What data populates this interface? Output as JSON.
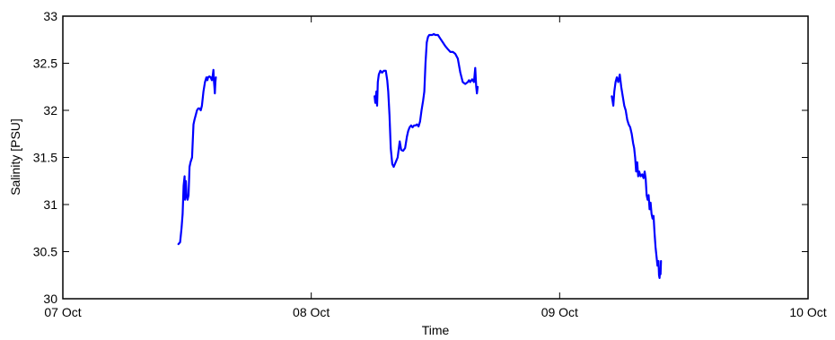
{
  "chart_data": {
    "type": "line",
    "title": "",
    "xlabel": "Time",
    "ylabel": "Salinity [PSU]",
    "x_unit": "days since 07 Oct",
    "xlim": [
      0,
      3
    ],
    "ylim": [
      30,
      33
    ],
    "grid": false,
    "x_ticks": [
      {
        "value": 0,
        "label": "07 Oct"
      },
      {
        "value": 1,
        "label": "08 Oct"
      },
      {
        "value": 2,
        "label": "09 Oct"
      },
      {
        "value": 3,
        "label": "10 Oct"
      }
    ],
    "y_ticks": [
      {
        "value": 30,
        "label": "30"
      },
      {
        "value": 30.5,
        "label": "30.5"
      },
      {
        "value": 31,
        "label": "31"
      },
      {
        "value": 31.5,
        "label": "31.5"
      },
      {
        "value": 32,
        "label": "32"
      },
      {
        "value": 32.5,
        "label": "32.5"
      },
      {
        "value": 33,
        "label": "33"
      }
    ],
    "color": "#0000ff",
    "segments": [
      {
        "x": [
          0.465,
          0.472,
          0.478,
          0.482,
          0.486,
          0.49,
          0.492,
          0.495,
          0.498,
          0.502,
          0.506,
          0.51,
          0.514,
          0.52,
          0.526,
          0.53,
          0.535,
          0.54,
          0.545,
          0.55,
          0.555,
          0.56,
          0.566,
          0.572,
          0.578,
          0.582,
          0.585,
          0.59,
          0.595,
          0.6,
          0.604,
          0.606,
          0.608,
          0.61,
          0.612,
          0.614,
          0.616
        ],
        "y": [
          30.58,
          30.6,
          30.75,
          30.9,
          31.2,
          31.3,
          31.05,
          31.25,
          31.1,
          31.05,
          31.1,
          31.4,
          31.45,
          31.5,
          31.85,
          31.9,
          31.95,
          32.0,
          32.02,
          32.02,
          32.0,
          32.05,
          32.2,
          32.3,
          32.35,
          32.32,
          32.35,
          32.36,
          32.35,
          32.32,
          32.38,
          32.43,
          32.32,
          32.25,
          32.18,
          32.3,
          32.35
        ]
      },
      {
        "x": [
          1.255,
          1.258,
          1.262,
          1.265,
          1.268,
          1.272,
          1.278,
          1.285,
          1.292,
          1.3,
          1.306,
          1.31,
          1.315,
          1.32,
          1.326,
          1.332,
          1.34,
          1.348,
          1.356,
          1.362,
          1.37,
          1.378,
          1.385,
          1.39,
          1.396,
          1.402,
          1.408,
          1.414,
          1.42,
          1.426,
          1.432,
          1.438,
          1.444,
          1.45,
          1.455,
          1.46,
          1.465,
          1.47,
          1.475,
          1.48,
          1.487,
          1.493,
          1.5,
          1.51,
          1.52,
          1.53,
          1.54,
          1.55,
          1.56,
          1.57,
          1.58,
          1.59,
          1.6,
          1.61,
          1.62,
          1.63,
          1.635,
          1.64,
          1.648,
          1.655,
          1.66,
          1.664,
          1.667,
          1.67
        ],
        "y": [
          32.15,
          32.08,
          32.2,
          32.05,
          32.3,
          32.38,
          32.42,
          32.4,
          32.42,
          32.42,
          32.32,
          32.2,
          31.95,
          31.6,
          31.43,
          31.4,
          31.45,
          31.5,
          31.67,
          31.58,
          31.57,
          31.6,
          31.72,
          31.78,
          31.82,
          31.84,
          31.82,
          31.84,
          31.84,
          31.85,
          31.83,
          31.88,
          32.0,
          32.1,
          32.2,
          32.5,
          32.72,
          32.78,
          32.8,
          32.8,
          32.8,
          32.81,
          32.8,
          32.8,
          32.76,
          32.72,
          32.68,
          32.65,
          32.62,
          32.62,
          32.6,
          32.55,
          32.4,
          32.3,
          32.28,
          32.3,
          32.32,
          32.3,
          32.33,
          32.3,
          32.45,
          32.25,
          32.18,
          32.25
        ]
      },
      {
        "x": [
          2.21,
          2.213,
          2.216,
          2.22,
          2.225,
          2.23,
          2.236,
          2.242,
          2.248,
          2.254,
          2.26,
          2.266,
          2.272,
          2.278,
          2.284,
          2.29,
          2.296,
          2.3,
          2.304,
          2.308,
          2.312,
          2.316,
          2.32,
          2.326,
          2.332,
          2.338,
          2.342,
          2.346,
          2.35,
          2.354,
          2.358,
          2.362,
          2.366,
          2.37,
          2.374,
          2.378,
          2.382,
          2.386,
          2.39,
          2.394,
          2.398,
          2.4,
          2.402,
          2.404,
          2.406,
          2.408
        ],
        "y": [
          32.15,
          32.1,
          32.05,
          32.2,
          32.3,
          32.35,
          32.3,
          32.38,
          32.25,
          32.15,
          32.05,
          32.0,
          31.9,
          31.85,
          31.82,
          31.75,
          31.65,
          31.6,
          31.5,
          31.35,
          31.45,
          31.3,
          31.35,
          31.3,
          31.32,
          31.28,
          31.35,
          31.28,
          31.1,
          31.05,
          31.1,
          30.95,
          31.02,
          30.9,
          30.85,
          30.88,
          30.7,
          30.55,
          30.45,
          30.35,
          30.4,
          30.25,
          30.22,
          30.3,
          30.26,
          30.4
        ]
      }
    ]
  }
}
